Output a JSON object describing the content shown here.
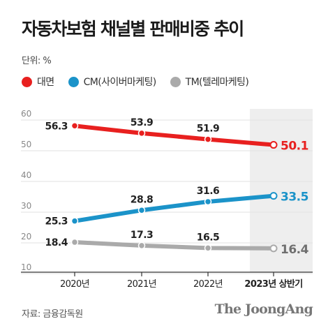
{
  "title": "자동차보험 채널별 판매비중 추이",
  "unit_label": "단위: %",
  "legend": [
    {
      "label": "대면",
      "color": "#e8201f"
    },
    {
      "label": "CM(사이버마케팅)",
      "color": "#1b93c9"
    },
    {
      "label": "TM(텔레마케팅)",
      "color": "#aaaaaa"
    }
  ],
  "source": "자료: 금융감독원",
  "brand": "The JoongAng",
  "chart_data": {
    "type": "line",
    "categories": [
      "2020년",
      "2021년",
      "2022년",
      "2023년 상반기"
    ],
    "highlight_category": 3,
    "yticks": [
      60,
      50,
      40,
      30,
      20,
      10
    ],
    "ylim": [
      10,
      60
    ],
    "grid": true,
    "series": [
      {
        "name": "대면",
        "color": "#e8201f",
        "values": [
          56.3,
          53.9,
          51.9,
          50.1
        ]
      },
      {
        "name": "CM(사이버마케팅)",
        "color": "#1b93c9",
        "values": [
          25.3,
          28.8,
          31.6,
          33.5
        ]
      },
      {
        "name": "TM(텔레마케팅)",
        "color": "#aaaaaa",
        "values": [
          18.4,
          17.3,
          16.5,
          16.4
        ]
      }
    ],
    "labels": [
      [
        "56.3",
        "53.9",
        "51.9",
        "50.1"
      ],
      [
        "25.3",
        "28.8",
        "31.6",
        "33.5"
      ],
      [
        "18.4",
        "17.3",
        "16.5",
        "16.4"
      ]
    ],
    "last_label_colors": [
      "#e8201f",
      "#1b93c9",
      "#6f6f6f"
    ]
  }
}
